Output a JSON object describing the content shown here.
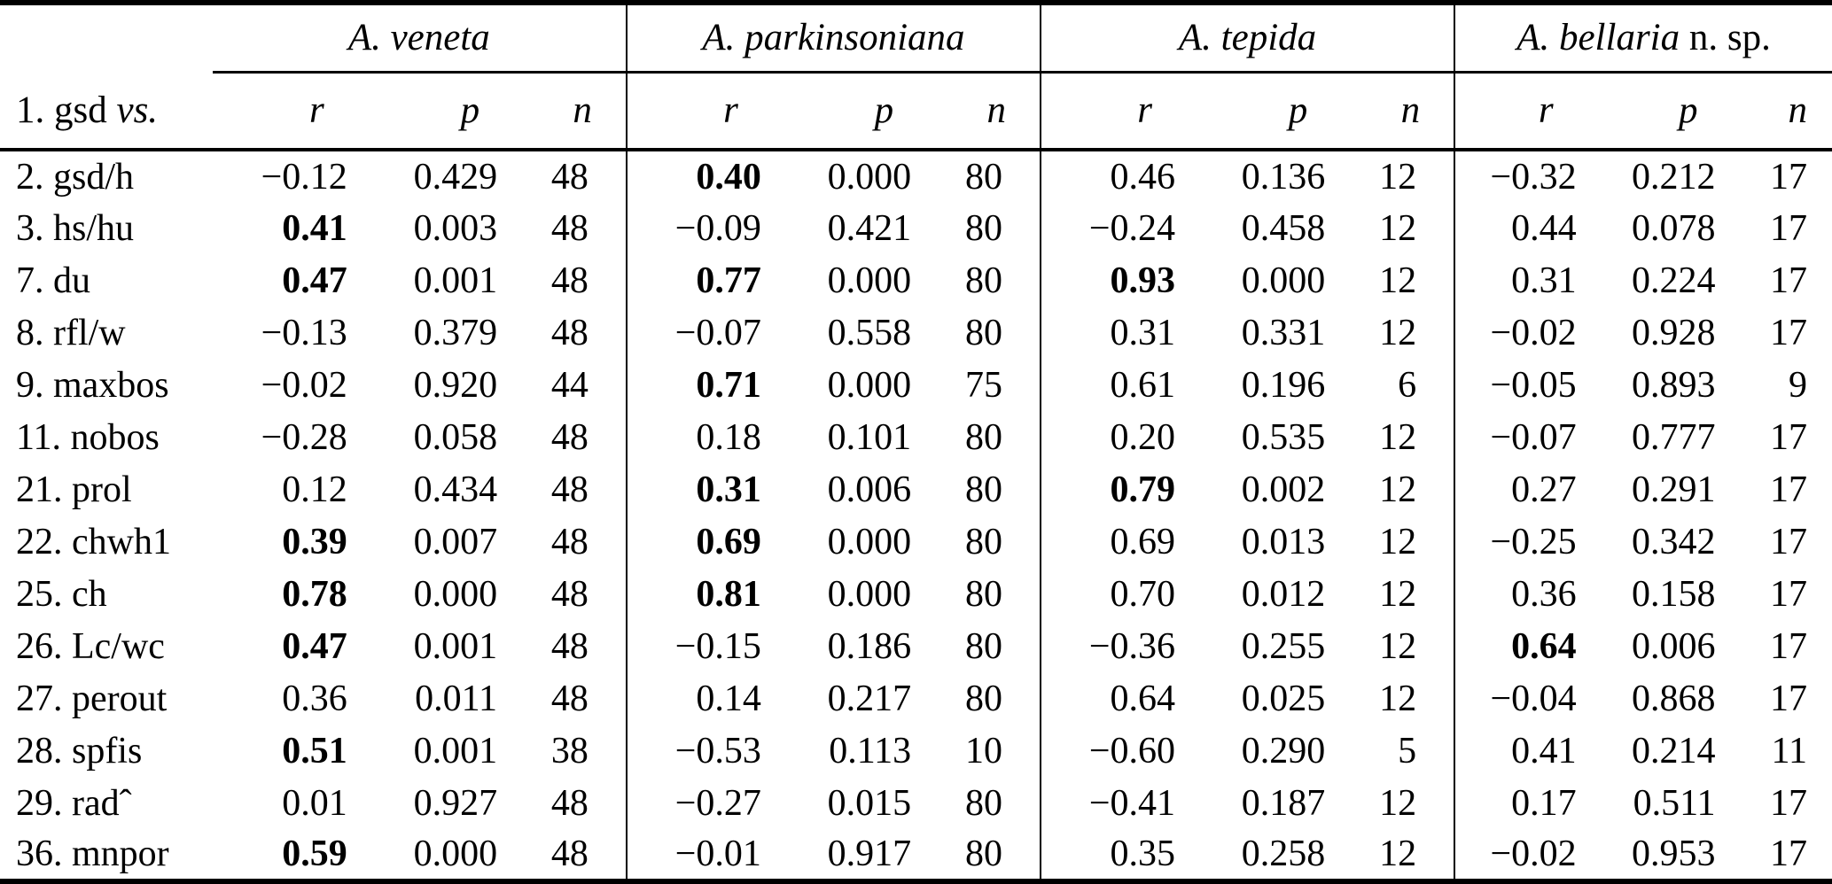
{
  "colors": {
    "text": "#000000",
    "background": "#ffffff",
    "rule": "#000000"
  },
  "table": {
    "corner_label": {
      "main": "1. gsd ",
      "vs": "vs."
    },
    "species": [
      {
        "name": "A. veneta",
        "suffix": ""
      },
      {
        "name": "A. parkinsoniana",
        "suffix": ""
      },
      {
        "name": "A. tepida",
        "suffix": ""
      },
      {
        "name": "A. bellaria",
        "suffix": " n. sp."
      }
    ],
    "subheaders": [
      "r",
      "p",
      "n"
    ],
    "rows": [
      {
        "label": "2. gsd/h",
        "groups": [
          {
            "r": "−0.12",
            "bold": false,
            "p": "0.429",
            "n": "48"
          },
          {
            "r": "0.40",
            "bold": true,
            "p": "0.000",
            "n": "80"
          },
          {
            "r": "0.46",
            "bold": false,
            "p": "0.136",
            "n": "12"
          },
          {
            "r": "−0.32",
            "bold": false,
            "p": "0.212",
            "n": "17"
          }
        ]
      },
      {
        "label": "3. hs/hu",
        "groups": [
          {
            "r": "0.41",
            "bold": true,
            "p": "0.003",
            "n": "48"
          },
          {
            "r": "−0.09",
            "bold": false,
            "p": "0.421",
            "n": "80"
          },
          {
            "r": "−0.24",
            "bold": false,
            "p": "0.458",
            "n": "12"
          },
          {
            "r": "0.44",
            "bold": false,
            "p": "0.078",
            "n": "17"
          }
        ]
      },
      {
        "label": "7. du",
        "groups": [
          {
            "r": "0.47",
            "bold": true,
            "p": "0.001",
            "n": "48"
          },
          {
            "r": "0.77",
            "bold": true,
            "p": "0.000",
            "n": "80"
          },
          {
            "r": "0.93",
            "bold": true,
            "p": "0.000",
            "n": "12"
          },
          {
            "r": "0.31",
            "bold": false,
            "p": "0.224",
            "n": "17"
          }
        ]
      },
      {
        "label": "8. rfl/w",
        "groups": [
          {
            "r": "−0.13",
            "bold": false,
            "p": "0.379",
            "n": "48"
          },
          {
            "r": "−0.07",
            "bold": false,
            "p": "0.558",
            "n": "80"
          },
          {
            "r": "0.31",
            "bold": false,
            "p": "0.331",
            "n": "12"
          },
          {
            "r": "−0.02",
            "bold": false,
            "p": "0.928",
            "n": "17"
          }
        ]
      },
      {
        "label": "9. maxbos",
        "groups": [
          {
            "r": "−0.02",
            "bold": false,
            "p": "0.920",
            "n": "44"
          },
          {
            "r": "0.71",
            "bold": true,
            "p": "0.000",
            "n": "75"
          },
          {
            "r": "0.61",
            "bold": false,
            "p": "0.196",
            "n": "6"
          },
          {
            "r": "−0.05",
            "bold": false,
            "p": "0.893",
            "n": "9"
          }
        ]
      },
      {
        "label": "11. nobos",
        "groups": [
          {
            "r": "−0.28",
            "bold": false,
            "p": "0.058",
            "n": "48"
          },
          {
            "r": "0.18",
            "bold": false,
            "p": "0.101",
            "n": "80"
          },
          {
            "r": "0.20",
            "bold": false,
            "p": "0.535",
            "n": "12"
          },
          {
            "r": "−0.07",
            "bold": false,
            "p": "0.777",
            "n": "17"
          }
        ]
      },
      {
        "label": "21. prol",
        "groups": [
          {
            "r": "0.12",
            "bold": false,
            "p": "0.434",
            "n": "48"
          },
          {
            "r": "0.31",
            "bold": true,
            "p": "0.006",
            "n": "80"
          },
          {
            "r": "0.79",
            "bold": true,
            "p": "0.002",
            "n": "12"
          },
          {
            "r": "0.27",
            "bold": false,
            "p": "0.291",
            "n": "17"
          }
        ]
      },
      {
        "label": "22. chwh1",
        "groups": [
          {
            "r": "0.39",
            "bold": true,
            "p": "0.007",
            "n": "48"
          },
          {
            "r": "0.69",
            "bold": true,
            "p": "0.000",
            "n": "80"
          },
          {
            "r": "0.69",
            "bold": false,
            "p": "0.013",
            "n": "12"
          },
          {
            "r": "−0.25",
            "bold": false,
            "p": "0.342",
            "n": "17"
          }
        ]
      },
      {
        "label": "25. ch",
        "groups": [
          {
            "r": "0.78",
            "bold": true,
            "p": "0.000",
            "n": "48"
          },
          {
            "r": "0.81",
            "bold": true,
            "p": "0.000",
            "n": "80"
          },
          {
            "r": "0.70",
            "bold": false,
            "p": "0.012",
            "n": "12"
          },
          {
            "r": "0.36",
            "bold": false,
            "p": "0.158",
            "n": "17"
          }
        ]
      },
      {
        "label": "26. Lc/wc",
        "groups": [
          {
            "r": "0.47",
            "bold": true,
            "p": "0.001",
            "n": "48"
          },
          {
            "r": "−0.15",
            "bold": false,
            "p": "0.186",
            "n": "80"
          },
          {
            "r": "−0.36",
            "bold": false,
            "p": "0.255",
            "n": "12"
          },
          {
            "r": "0.64",
            "bold": true,
            "p": "0.006",
            "n": "17"
          }
        ]
      },
      {
        "label": "27. perout",
        "groups": [
          {
            "r": "0.36",
            "bold": false,
            "p": "0.011",
            "n": "48"
          },
          {
            "r": "0.14",
            "bold": false,
            "p": "0.217",
            "n": "80"
          },
          {
            "r": "0.64",
            "bold": false,
            "p": "0.025",
            "n": "12"
          },
          {
            "r": "−0.04",
            "bold": false,
            "p": "0.868",
            "n": "17"
          }
        ]
      },
      {
        "label": "28. spfis",
        "groups": [
          {
            "r": "0.51",
            "bold": true,
            "p": "0.001",
            "n": "38"
          },
          {
            "r": "−0.53",
            "bold": false,
            "p": "0.113",
            "n": "10"
          },
          {
            "r": "−0.60",
            "bold": false,
            "p": "0.290",
            "n": "5"
          },
          {
            "r": "0.41",
            "bold": false,
            "p": "0.214",
            "n": "11"
          }
        ]
      },
      {
        "label": "29. radˆ",
        "groups": [
          {
            "r": "0.01",
            "bold": false,
            "p": "0.927",
            "n": "48"
          },
          {
            "r": "−0.27",
            "bold": false,
            "p": "0.015",
            "n": "80"
          },
          {
            "r": "−0.41",
            "bold": false,
            "p": "0.187",
            "n": "12"
          },
          {
            "r": "0.17",
            "bold": false,
            "p": "0.511",
            "n": "17"
          }
        ]
      },
      {
        "label": "36. mnpor",
        "groups": [
          {
            "r": "0.59",
            "bold": true,
            "p": "0.000",
            "n": "48"
          },
          {
            "r": "−0.01",
            "bold": false,
            "p": "0.917",
            "n": "80"
          },
          {
            "r": "0.35",
            "bold": false,
            "p": "0.258",
            "n": "12"
          },
          {
            "r": "−0.02",
            "bold": false,
            "p": "0.953",
            "n": "17"
          }
        ]
      }
    ]
  }
}
